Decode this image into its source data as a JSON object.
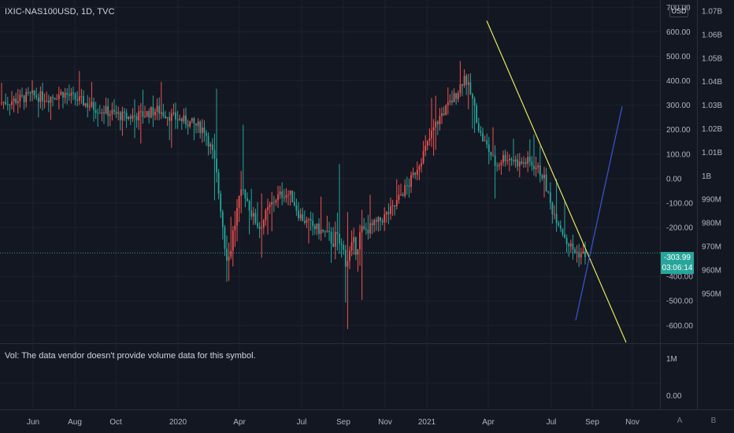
{
  "symbol_title": "IXIC-NAS100USD, 1D, TVC",
  "currency": "USD",
  "volume_note": "Vol: The data vendor doesn't provide volume data for this symbol.",
  "last_price": {
    "value": "-303.99",
    "countdown": "03:06:14"
  },
  "scale_modes": [
    "A",
    "B"
  ],
  "colors": {
    "background": "#131722",
    "up": "#ef5350",
    "down": "#26a69a",
    "trendline_down": "#e6e85a",
    "trendline_up": "#3a56d4",
    "grid": "#1e222d",
    "text": "#b2b5be"
  },
  "chart_data": {
    "type": "candlestick",
    "title": "IXIC-NAS100USD, 1D, TVC",
    "left_axis": {
      "ticks": [
        700,
        600,
        500,
        400,
        300,
        200,
        100,
        0,
        -100,
        -200,
        -400,
        -500,
        -600
      ],
      "tick_labels": [
        "700.00",
        "600.00",
        "500.00",
        "400.00",
        "300.00",
        "200.00",
        "100.00",
        "0.00",
        "-100.00",
        "-200.00",
        "-400.00",
        "-500.00",
        "-600.00"
      ],
      "ylim": [
        -670,
        730
      ]
    },
    "right_axis": {
      "tick_labels": [
        "1.07B",
        "1.06B",
        "1.05B",
        "1.04B",
        "1.03B",
        "1.02B",
        "1.01B",
        "1B",
        "990M",
        "980M",
        "970M",
        "960M",
        "950M"
      ]
    },
    "x_axis": {
      "tick_labels": [
        "Jun",
        "Aug",
        "Oct",
        "2020",
        "Apr",
        "Jul",
        "Sep",
        "Nov",
        "2021",
        "Apr",
        "Jul",
        "Sep",
        "Nov"
      ]
    },
    "current_value": -303.99,
    "close_path": [
      [
        0,
        310
      ],
      [
        20,
        320
      ],
      [
        40,
        340
      ],
      [
        60,
        330
      ],
      [
        80,
        350
      ],
      [
        100,
        320
      ],
      [
        120,
        290
      ],
      [
        140,
        270
      ],
      [
        160,
        250
      ],
      [
        180,
        260
      ],
      [
        200,
        280
      ],
      [
        220,
        250
      ],
      [
        240,
        230
      ],
      [
        260,
        200
      ],
      [
        270,
        100
      ],
      [
        280,
        -100
      ],
      [
        285,
        -250
      ],
      [
        290,
        -330
      ],
      [
        300,
        -150
      ],
      [
        310,
        -50
      ],
      [
        320,
        -150
      ],
      [
        330,
        -200
      ],
      [
        340,
        -130
      ],
      [
        350,
        -80
      ],
      [
        360,
        -60
      ],
      [
        370,
        -70
      ],
      [
        380,
        -150
      ],
      [
        390,
        -180
      ],
      [
        400,
        -200
      ],
      [
        410,
        -220
      ],
      [
        420,
        -240
      ],
      [
        430,
        -260
      ],
      [
        440,
        -330
      ],
      [
        450,
        -280
      ],
      [
        460,
        -220
      ],
      [
        470,
        -200
      ],
      [
        480,
        -180
      ],
      [
        490,
        -150
      ],
      [
        500,
        -120
      ],
      [
        510,
        -60
      ],
      [
        520,
        -20
      ],
      [
        530,
        50
      ],
      [
        540,
        120
      ],
      [
        550,
        200
      ],
      [
        560,
        260
      ],
      [
        570,
        300
      ],
      [
        580,
        350
      ],
      [
        590,
        420
      ],
      [
        600,
        320
      ],
      [
        610,
        180
      ],
      [
        620,
        120
      ],
      [
        630,
        50
      ],
      [
        640,
        90
      ],
      [
        650,
        80
      ],
      [
        660,
        60
      ],
      [
        670,
        70
      ],
      [
        680,
        50
      ],
      [
        690,
        10
      ],
      [
        700,
        -120
      ],
      [
        710,
        -180
      ],
      [
        720,
        -260
      ],
      [
        730,
        -300
      ],
      [
        740,
        -310
      ],
      [
        745,
        -304
      ]
    ],
    "series": [
      {
        "name": "Down trendline",
        "points": [
          [
            618,
            645
          ],
          [
            795,
            -670
          ]
        ]
      },
      {
        "name": "Up trendline",
        "points": [
          [
            731,
            -580
          ],
          [
            790,
            295
          ]
        ]
      }
    ],
    "volume_pane": {
      "tick_labels": [
        "1M",
        "0.00"
      ]
    }
  }
}
